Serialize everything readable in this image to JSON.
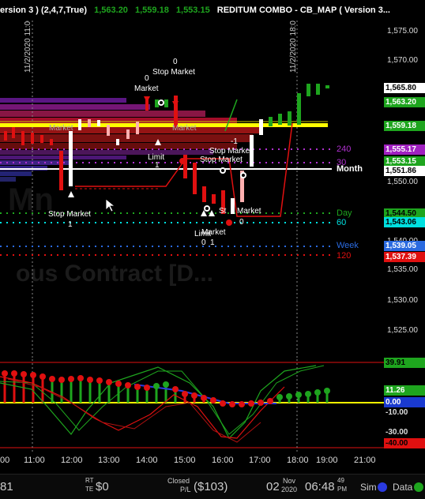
{
  "header": {
    "left_title": "ersion 3 ) (2,4,7,True)",
    "price_1": "1,563.20",
    "price_2": "1,559.18",
    "price_3": "1,553.15",
    "right_title": "REDITUM COMBO - CB_MAP ( Version 3..."
  },
  "session_labels": {
    "start": "11/2/2020 11:00",
    "end": "11/2/2020 18:00"
  },
  "watermark": "ous Contract [D...",
  "price_axis": {
    "ticks": [
      "1,575.00",
      "1,570.00",
      "1,565.80",
      "1,563.20",
      "1,559.18",
      "1,555.17",
      "1,553.15",
      "1,551.86",
      "1,550.00",
      "1,544.50",
      "1,543.06",
      "1,540.00",
      "1,539.05",
      "1,537.39",
      "1,535.00",
      "1,530.00",
      "1,525.00"
    ]
  },
  "price_tags": [
    {
      "value": "1,565.80",
      "bg": "#ffffff",
      "fg": "#000000"
    },
    {
      "value": "1,563.20",
      "bg": "#1ea51e",
      "fg": "#ffffff"
    },
    {
      "value": "1,559.18",
      "bg": "#1ea51e",
      "fg": "#ffffff"
    },
    {
      "value": "1,555.17",
      "bg": "#a020c0",
      "fg": "#ffffff"
    },
    {
      "value": "1,553.15",
      "bg": "#1ea51e",
      "fg": "#ffffff"
    },
    {
      "value": "1,551.86",
      "bg": "#ffffff",
      "fg": "#000000"
    },
    {
      "value": "1,544.50",
      "bg": "#1ea51e",
      "fg": "#000000"
    },
    {
      "value": "1,543.06",
      "bg": "#00e0e0",
      "fg": "#000000"
    },
    {
      "value": "1,539.05",
      "bg": "#2a6ae0",
      "fg": "#ffffff"
    },
    {
      "value": "1,537.39",
      "bg": "#e01010",
      "fg": "#ffffff"
    }
  ],
  "level_labels": {
    "l240": "240",
    "l30": "30",
    "month": "Month",
    "day": "Day",
    "l60": "60",
    "week": "Week",
    "l120": "120"
  },
  "order_labels": {
    "stop_market_1": "Stop Market",
    "market_1": "Market",
    "zero_1": "0",
    "zero_2": "0",
    "market_2": "Market",
    "limit_1": "Limit",
    "one_1": "1",
    "stop_market_2": "Stop Market",
    "stop_market_3": "Stop Market",
    "stop_market_4": "Stop Market",
    "market_3": "Market",
    "neg_one": "-1",
    "limit_2": "Limit",
    "market_4": "Market",
    "zero_3": "0",
    "one_2": "1",
    "stop_market_5": "St",
    "market_5": "Market",
    "zero_4": "0",
    "one_3": "1"
  },
  "indicator_axis": {
    "tags": [
      {
        "value": "39.91",
        "bg": "#1ea51e",
        "fg": "#000000"
      },
      {
        "value": "11.26",
        "bg": "#1ea51e",
        "fg": "#ffffff"
      },
      {
        "value": "0.00",
        "bg": "#1a3ad0",
        "fg": "#ffffff"
      },
      {
        "value": "-10.00",
        "bg": "",
        "fg": "#dddddd"
      },
      {
        "value": "-30.00",
        "bg": "",
        "fg": "#dddddd"
      },
      {
        "value": "-40.00",
        "bg": "#e01010",
        "fg": "#000000"
      }
    ]
  },
  "time_axis": {
    "labels": [
      "00",
      "11:00",
      "12:00",
      "13:00",
      "14:00",
      "15:00",
      "16:00",
      "17:00",
      "18:00",
      "19:00",
      "21:00"
    ]
  },
  "status_bar": {
    "account_fragment": "81",
    "rt_label": "RT",
    "te_label": "TE",
    "realized": "$0",
    "closed_label": "Closed",
    "pl_label": "P/L",
    "closed_pl": "($103)",
    "day": "02",
    "month": "Nov",
    "year": "2020",
    "time": "06:48",
    "seconds": "49",
    "ampm": "PM",
    "sim_label": "Sim",
    "data_label": "Data"
  },
  "colors": {
    "up": "#1ea51e",
    "down": "#e01010",
    "band": "#ffff00",
    "sim_dot": "#2a3ae0",
    "data_dot": "#1ea51e"
  }
}
